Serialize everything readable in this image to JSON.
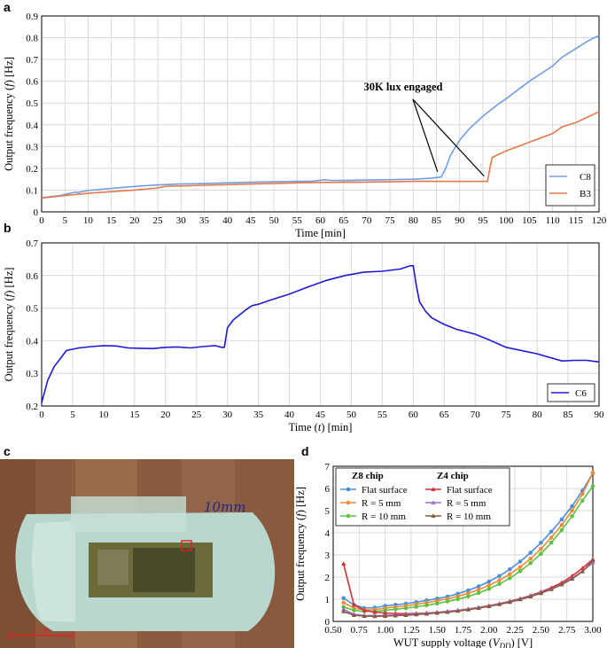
{
  "chart_data": [
    {
      "panel": "a",
      "type": "line",
      "title": "",
      "xlabel": "Time [min]",
      "ylabel": "Output frequency (f) [Hz]",
      "xlim": [
        0,
        120
      ],
      "ylim": [
        0,
        0.9
      ],
      "xticks": [
        0,
        5,
        10,
        15,
        20,
        25,
        30,
        35,
        40,
        45,
        50,
        55,
        60,
        65,
        70,
        75,
        80,
        85,
        90,
        95,
        100,
        105,
        110,
        115,
        120
      ],
      "yticks": [
        0,
        0.1,
        0.2,
        0.3,
        0.4,
        0.5,
        0.6,
        0.7,
        0.8,
        0.9
      ],
      "ytick_labels": [
        "0",
        "0.1",
        "0.2",
        "0.3",
        "0.4",
        "0.5",
        "0.6",
        "0.7",
        "0.8",
        "0.9"
      ],
      "grid": true,
      "legend": "bottom-right",
      "annotation": {
        "text": "30K lux engaged",
        "targets": [
          [
            86,
            0.16
          ],
          [
            96,
            0.14
          ]
        ],
        "anchor": [
          48,
          0.68
        ]
      },
      "series": [
        {
          "name": "C8",
          "color": "#6f9fdf",
          "x": [
            0,
            2,
            4,
            6,
            7,
            8,
            10,
            15,
            20,
            25,
            30,
            35,
            40,
            45,
            50,
            55,
            58,
            60,
            61,
            62,
            65,
            70,
            75,
            80,
            84,
            86,
            87,
            88,
            90,
            92,
            95,
            98,
            100,
            105,
            110,
            112,
            115,
            118,
            120
          ],
          "y": [
            0.065,
            0.07,
            0.075,
            0.085,
            0.09,
            0.09,
            0.098,
            0.108,
            0.117,
            0.124,
            0.128,
            0.13,
            0.133,
            0.136,
            0.138,
            0.14,
            0.14,
            0.145,
            0.148,
            0.145,
            0.144,
            0.146,
            0.148,
            0.15,
            0.155,
            0.16,
            0.2,
            0.26,
            0.33,
            0.38,
            0.44,
            0.49,
            0.52,
            0.6,
            0.67,
            0.71,
            0.75,
            0.79,
            0.81
          ]
        },
        {
          "name": "B3",
          "color": "#e8774a",
          "x": [
            0,
            5,
            10,
            15,
            20,
            25,
            26,
            27,
            30,
            35,
            40,
            45,
            50,
            55,
            60,
            65,
            70,
            75,
            80,
            85,
            90,
            94,
            96,
            96.5,
            97,
            100,
            105,
            110,
            112,
            115,
            117,
            118,
            120
          ],
          "y": [
            0.063,
            0.075,
            0.085,
            0.093,
            0.1,
            0.11,
            0.115,
            0.118,
            0.119,
            0.122,
            0.125,
            0.128,
            0.13,
            0.133,
            0.135,
            0.136,
            0.137,
            0.138,
            0.14,
            0.14,
            0.14,
            0.14,
            0.14,
            0.2,
            0.25,
            0.28,
            0.32,
            0.36,
            0.39,
            0.41,
            0.43,
            0.44,
            0.46
          ]
        }
      ]
    },
    {
      "panel": "b",
      "type": "line",
      "title": "",
      "xlabel": "Time (t) [min]",
      "ylabel": "Output frequency (f) [Hz]",
      "xlim": [
        0,
        90
      ],
      "ylim": [
        0.2,
        0.7
      ],
      "xticks": [
        0,
        5,
        10,
        15,
        20,
        25,
        30,
        35,
        40,
        45,
        50,
        55,
        60,
        65,
        70,
        75,
        80,
        85,
        90
      ],
      "yticks": [
        0.2,
        0.3,
        0.4,
        0.5,
        0.6,
        0.7
      ],
      "ytick_labels": [
        "0.2",
        "0.3",
        "0.4",
        "0.5",
        "0.6",
        "0.7"
      ],
      "grid": true,
      "legend": "bottom-right",
      "series": [
        {
          "name": "C6",
          "color": "#1a1ad6",
          "x": [
            0,
            1,
            2,
            3,
            4,
            6,
            8,
            10,
            12,
            14,
            16,
            18,
            20,
            22,
            24,
            26,
            28,
            29,
            29.5,
            30,
            31,
            32,
            33,
            34,
            35,
            37,
            40,
            43,
            46,
            49,
            52,
            55,
            58,
            59.5,
            60,
            60.5,
            61,
            62,
            63,
            65,
            67,
            70,
            72,
            75,
            80,
            84,
            86,
            88,
            90
          ],
          "y": [
            0.21,
            0.28,
            0.32,
            0.345,
            0.37,
            0.378,
            0.382,
            0.385,
            0.384,
            0.378,
            0.377,
            0.376,
            0.38,
            0.381,
            0.378,
            0.382,
            0.385,
            0.38,
            0.38,
            0.44,
            0.465,
            0.48,
            0.495,
            0.508,
            0.512,
            0.525,
            0.543,
            0.565,
            0.585,
            0.6,
            0.61,
            0.613,
            0.62,
            0.63,
            0.63,
            0.57,
            0.52,
            0.49,
            0.47,
            0.45,
            0.435,
            0.42,
            0.405,
            0.38,
            0.36,
            0.338,
            0.34,
            0.34,
            0.335
          ]
        }
      ]
    },
    {
      "panel": "d",
      "type": "line",
      "title": "",
      "xlabel": "WUT supply voltage (V_DD) [V]",
      "ylabel": "Output frequency (f) [Hz]",
      "xlim": [
        0.5,
        3.0
      ],
      "ylim": [
        0,
        7
      ],
      "xticks": [
        0.5,
        0.75,
        1.0,
        1.25,
        1.5,
        1.75,
        2.0,
        2.25,
        2.5,
        2.75,
        3.0
      ],
      "xtick_labels": [
        "0.50",
        "0.75",
        "1.00",
        "1.25",
        "1.50",
        "1.75",
        "2.00",
        "2.25",
        "2.50",
        "2.75",
        "3.00"
      ],
      "yticks": [
        0,
        1,
        2,
        3,
        4,
        5,
        6,
        7
      ],
      "ytick_labels": [
        "0",
        "1",
        "2",
        "3",
        "4",
        "5",
        "6",
        "7"
      ],
      "grid": true,
      "legend": "top-left",
      "legend_groups": [
        "Z8 chip",
        "Z4 chip"
      ],
      "series": [
        {
          "name": "Flat surface",
          "group": "Z8 chip",
          "color": "#4a90d9",
          "marker": "circle",
          "x": [
            0.6,
            0.7,
            0.8,
            0.9,
            1.0,
            1.1,
            1.2,
            1.3,
            1.4,
            1.5,
            1.6,
            1.7,
            1.8,
            1.9,
            2.0,
            2.1,
            2.2,
            2.3,
            2.4,
            2.5,
            2.6,
            2.7,
            2.8,
            2.9,
            3.0
          ],
          "y": [
            1.05,
            0.75,
            0.6,
            0.62,
            0.7,
            0.75,
            0.8,
            0.87,
            0.95,
            1.03,
            1.12,
            1.25,
            1.4,
            1.58,
            1.8,
            2.05,
            2.35,
            2.7,
            3.1,
            3.55,
            4.05,
            4.6,
            5.2,
            5.9,
            6.7
          ]
        },
        {
          "name": "R = 5 mm",
          "group": "Z8 chip",
          "color": "#f08a3a",
          "marker": "circle",
          "x": [
            0.6,
            0.7,
            0.8,
            0.9,
            1.0,
            1.1,
            1.2,
            1.3,
            1.4,
            1.5,
            1.6,
            1.7,
            1.8,
            1.9,
            2.0,
            2.1,
            2.2,
            2.3,
            2.4,
            2.5,
            2.6,
            2.7,
            2.8,
            2.9,
            3.0
          ],
          "y": [
            0.85,
            0.6,
            0.52,
            0.53,
            0.6,
            0.65,
            0.7,
            0.77,
            0.85,
            0.93,
            1.02,
            1.13,
            1.27,
            1.43,
            1.63,
            1.86,
            2.13,
            2.45,
            2.83,
            3.27,
            3.78,
            4.35,
            5.0,
            5.75,
            6.7
          ]
        },
        {
          "name": "R = 10 mm",
          "group": "Z8 chip",
          "color": "#5cc242",
          "marker": "circle",
          "x": [
            0.6,
            0.7,
            0.8,
            0.9,
            1.0,
            1.1,
            1.2,
            1.3,
            1.4,
            1.5,
            1.6,
            1.7,
            1.8,
            1.9,
            2.0,
            2.1,
            2.2,
            2.3,
            2.4,
            2.5,
            2.6,
            2.7,
            2.8,
            2.9,
            3.0
          ],
          "y": [
            0.65,
            0.5,
            0.45,
            0.45,
            0.5,
            0.55,
            0.6,
            0.66,
            0.73,
            0.81,
            0.9,
            1.0,
            1.13,
            1.28,
            1.47,
            1.69,
            1.95,
            2.27,
            2.63,
            3.05,
            3.55,
            4.12,
            4.75,
            5.45,
            6.1
          ]
        },
        {
          "name": "Flat surface",
          "group": "Z4 chip",
          "color": "#d62f34",
          "marker": "triangle",
          "x": [
            0.6,
            0.7,
            0.8,
            0.9,
            1.0,
            1.1,
            1.2,
            1.3,
            1.4,
            1.5,
            1.6,
            1.7,
            1.8,
            1.9,
            2.0,
            2.1,
            2.2,
            2.3,
            2.4,
            2.5,
            2.6,
            2.7,
            2.8,
            2.9,
            3.0
          ],
          "y": [
            2.6,
            0.75,
            0.5,
            0.42,
            0.38,
            0.36,
            0.35,
            0.36,
            0.38,
            0.41,
            0.45,
            0.5,
            0.56,
            0.63,
            0.71,
            0.8,
            0.91,
            1.03,
            1.17,
            1.33,
            1.52,
            1.75,
            2.05,
            2.4,
            2.8
          ]
        },
        {
          "name": "R = 5 mm",
          "group": "Z4 chip",
          "color": "#9c6fd1",
          "marker": "triangle",
          "x": [
            0.6,
            0.7,
            0.8,
            0.9,
            1.0,
            1.1,
            1.2,
            1.3,
            1.4,
            1.5,
            1.6,
            1.7,
            1.8,
            1.9,
            2.0,
            2.1,
            2.2,
            2.3,
            2.4,
            2.5,
            2.6,
            2.7,
            2.8,
            2.9,
            3.0
          ],
          "y": [
            0.55,
            0.32,
            0.27,
            0.26,
            0.27,
            0.29,
            0.31,
            0.34,
            0.37,
            0.41,
            0.45,
            0.5,
            0.56,
            0.63,
            0.71,
            0.8,
            0.9,
            1.02,
            1.15,
            1.3,
            1.47,
            1.68,
            1.95,
            2.27,
            2.65
          ]
        },
        {
          "name": "R = 10 mm",
          "group": "Z4 chip",
          "color": "#8a5a3e",
          "marker": "triangle",
          "x": [
            0.6,
            0.7,
            0.8,
            0.9,
            1.0,
            1.1,
            1.2,
            1.3,
            1.4,
            1.5,
            1.6,
            1.7,
            1.8,
            1.9,
            2.0,
            2.1,
            2.2,
            2.3,
            2.4,
            2.5,
            2.6,
            2.7,
            2.8,
            2.9,
            3.0
          ],
          "y": [
            0.45,
            0.28,
            0.24,
            0.23,
            0.24,
            0.26,
            0.28,
            0.31,
            0.34,
            0.38,
            0.42,
            0.47,
            0.53,
            0.6,
            0.68,
            0.77,
            0.87,
            0.99,
            1.12,
            1.27,
            1.45,
            1.66,
            1.92,
            2.25,
            2.75
          ]
        }
      ]
    }
  ],
  "panel_labels": {
    "a": "a",
    "b": "b",
    "c": "c",
    "d": "d"
  },
  "photo": {
    "scale_label": "1 cm",
    "handwritten_label": "10mm",
    "colors": {
      "tape": "#b8d8cf",
      "background": "#8a5a3e",
      "chip": "#6b6a3a"
    }
  }
}
